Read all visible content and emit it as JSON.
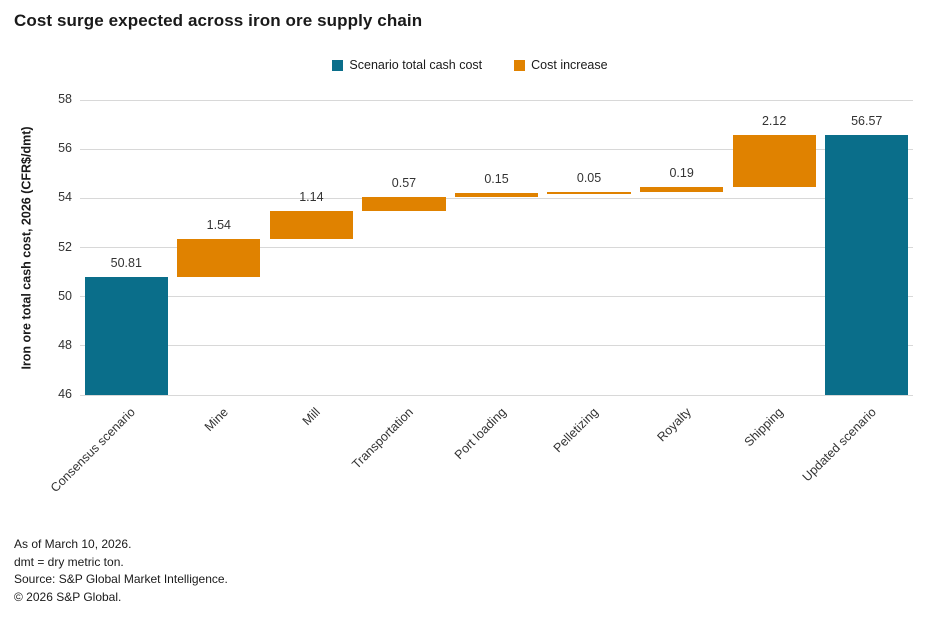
{
  "title": "Cost surge expected across iron ore supply chain",
  "legend": {
    "items": [
      {
        "label": "Scenario total cash cost"
      },
      {
        "label": "Cost increase"
      }
    ]
  },
  "colors": {
    "total": "#0A6E8A",
    "increase": "#E08200",
    "grid": "#D8D8D8"
  },
  "footer": {
    "lines": [
      "As of March 10, 2026.",
      "dmt = dry metric ton.",
      "Source: S&P Global Market Intelligence.",
      "© 2026 S&P Global."
    ]
  },
  "chart_data": {
    "type": "bar",
    "subtype": "waterfall",
    "title": "Cost surge expected across iron ore supply chain",
    "xlabel": "",
    "ylabel": "Iron ore total cash cost, 2026 (CFR$/dmt)",
    "ylim": [
      46,
      58
    ],
    "yticks": [
      46,
      48,
      50,
      52,
      54,
      56,
      58
    ],
    "grid": "horizontal",
    "legend_position": "top-center",
    "categories": [
      "Consensus scenario",
      "Mine",
      "Mill",
      "Transportation",
      "Port loading",
      "Pelletizing",
      "Royalty",
      "Shipping",
      "Updated scenario"
    ],
    "entries": [
      {
        "label": "Consensus scenario",
        "kind": "total",
        "value": 50.81,
        "display": "50.81"
      },
      {
        "label": "Mine",
        "kind": "increase",
        "value": 1.54,
        "display": "1.54"
      },
      {
        "label": "Mill",
        "kind": "increase",
        "value": 1.14,
        "display": "1.14"
      },
      {
        "label": "Transportation",
        "kind": "increase",
        "value": 0.57,
        "display": "0.57"
      },
      {
        "label": "Port loading",
        "kind": "increase",
        "value": 0.15,
        "display": "0.15"
      },
      {
        "label": "Pelletizing",
        "kind": "increase",
        "value": 0.05,
        "display": "0.05"
      },
      {
        "label": "Royalty",
        "kind": "increase",
        "value": 0.19,
        "display": "0.19"
      },
      {
        "label": "Shipping",
        "kind": "increase",
        "value": 2.12,
        "display": "2.12"
      },
      {
        "label": "Updated scenario",
        "kind": "total",
        "value": 56.57,
        "display": "56.57"
      }
    ]
  }
}
